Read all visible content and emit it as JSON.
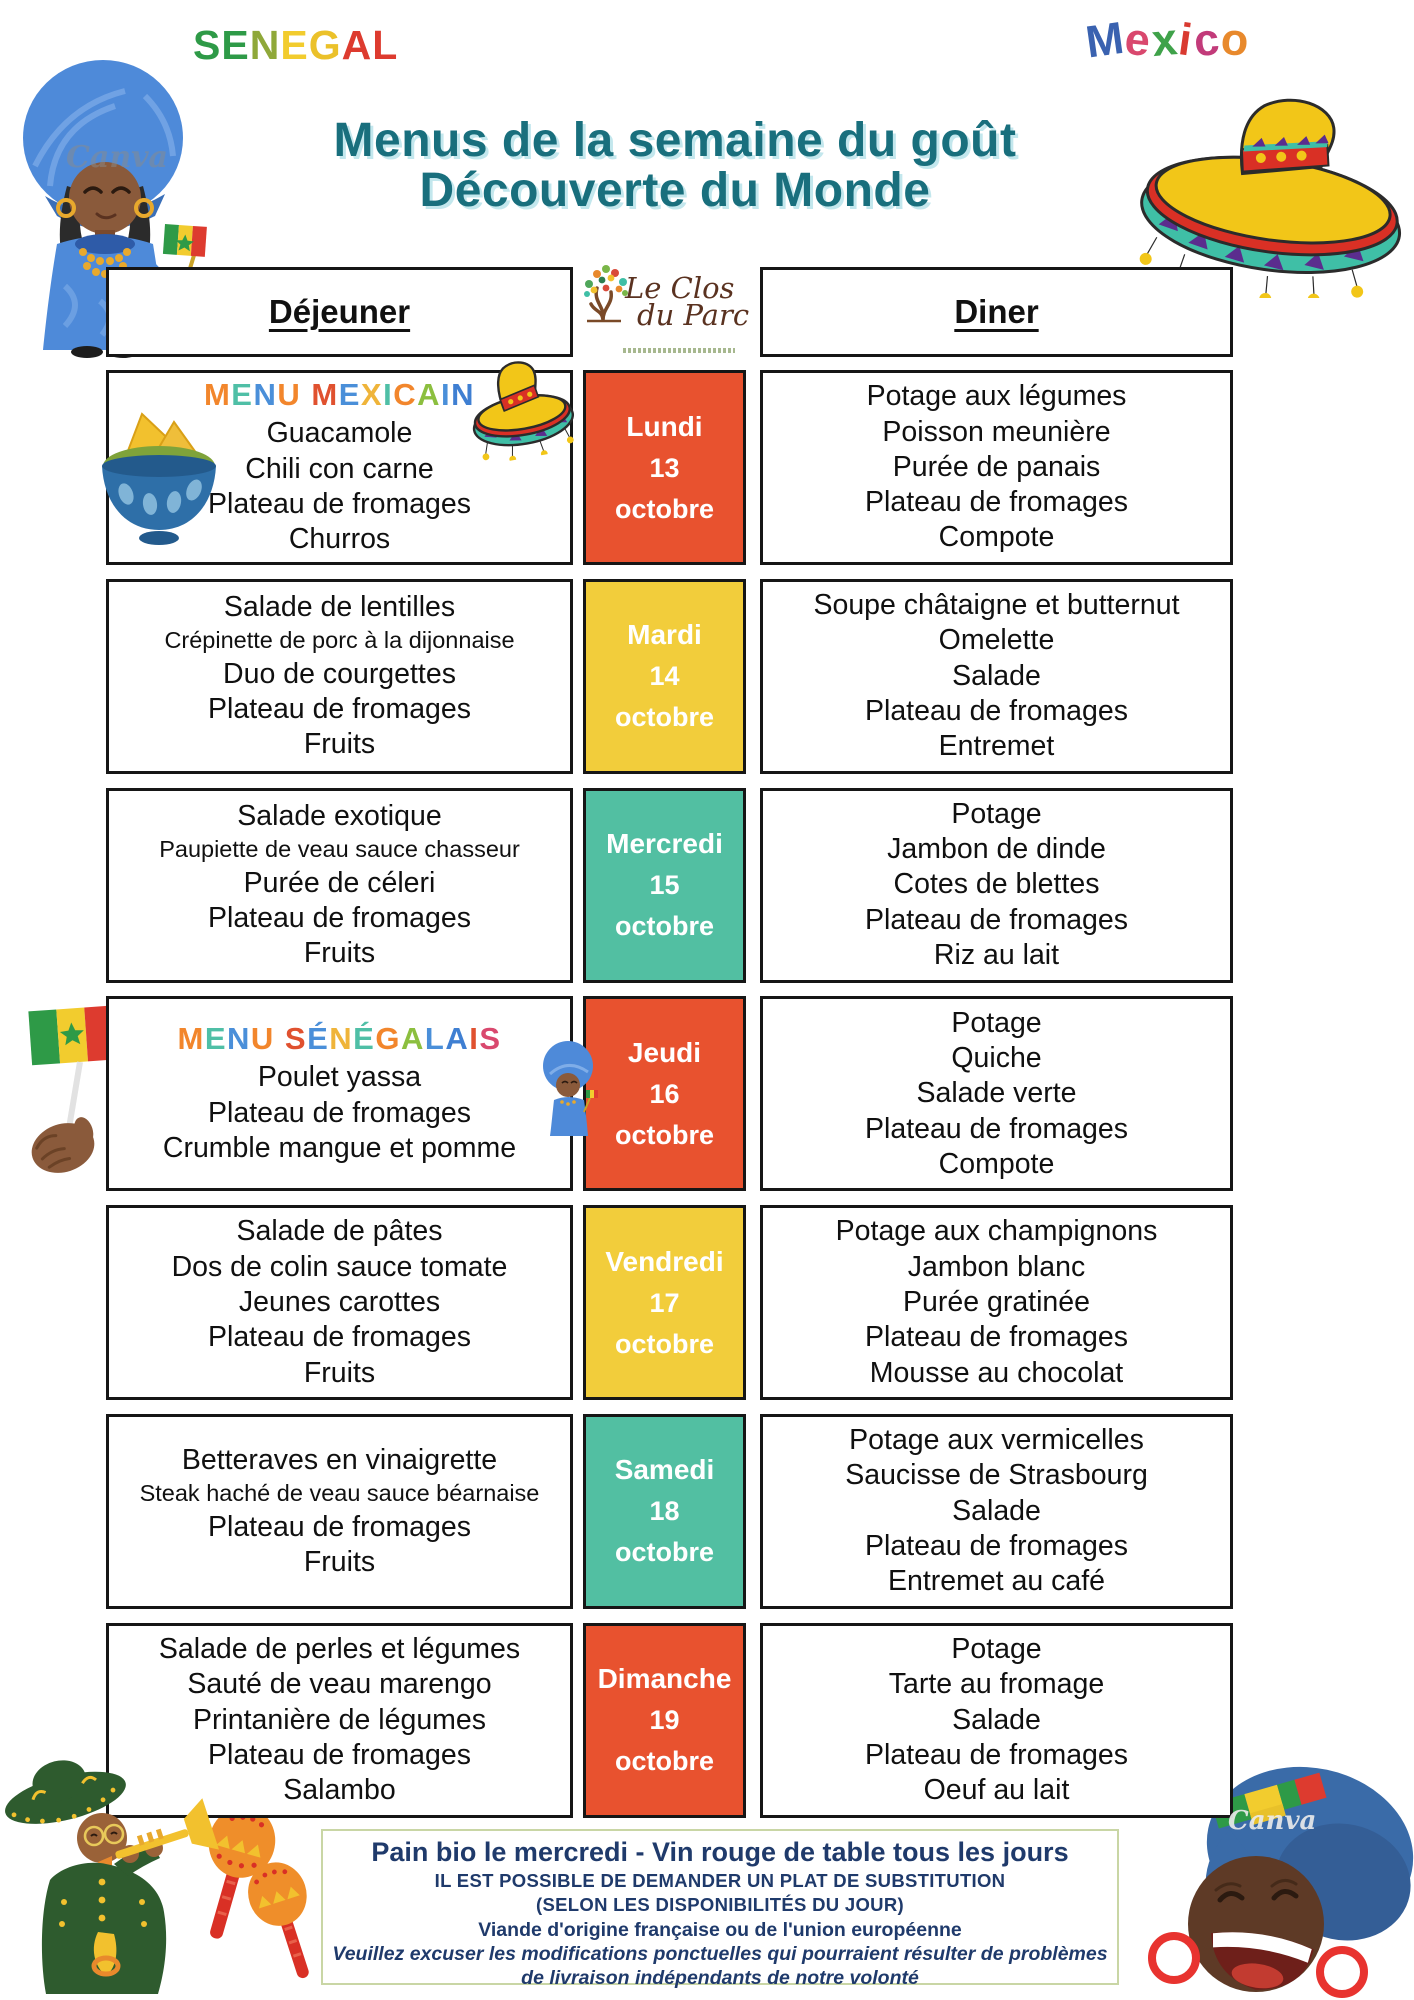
{
  "header_art": {
    "senegal_label": "SENEGAL",
    "mexico_label": "Mexico",
    "watermark": "Canva"
  },
  "title": {
    "line1": "Menus de la semaine du goût",
    "line2": "Découverte du Monde",
    "color": "#196F7D"
  },
  "logo": {
    "line1": "Le Clos",
    "line2": "du Parc"
  },
  "columns": {
    "lunch": "Déjeuner",
    "dinner": "Diner"
  },
  "day_colors": {
    "orange": "#E8522F",
    "yellow": "#F2CD3B",
    "teal": "#52BFA2"
  },
  "rows": [
    {
      "day": {
        "name": "Lundi",
        "date": "13",
        "month": "octobre",
        "color": "#E8522F"
      },
      "lunch": {
        "title": "MENU MEXICAIN",
        "items": [
          "Guacamole",
          "Chili con carne",
          "Plateau de fromages",
          "Churros"
        ]
      },
      "dinner": {
        "items": [
          "Potage aux légumes",
          "Poisson meunière",
          "Purée de panais",
          "Plateau de fromages",
          "Compote"
        ]
      }
    },
    {
      "day": {
        "name": "Mardi",
        "date": "14",
        "month": "octobre",
        "color": "#F2CD3B"
      },
      "lunch": {
        "items": [
          "Salade de lentilles",
          "Crépinette de porc à la dijonnaise",
          "Duo de courgettes",
          "Plateau de fromages",
          "Fruits"
        ]
      },
      "dinner": {
        "items": [
          "Soupe châtaigne et butternut",
          "Omelette",
          "Salade",
          "Plateau de fromages",
          "Entremet"
        ]
      }
    },
    {
      "day": {
        "name": "Mercredi",
        "date": "15",
        "month": "octobre",
        "color": "#52BFA2"
      },
      "lunch": {
        "items": [
          "Salade exotique",
          "Paupiette de veau sauce chasseur",
          "Purée de céleri",
          "Plateau de fromages",
          "Fruits"
        ]
      },
      "dinner": {
        "items": [
          "Potage",
          "Jambon de dinde",
          "Cotes de blettes",
          "Plateau de fromages",
          "Riz au lait"
        ]
      }
    },
    {
      "day": {
        "name": "Jeudi",
        "date": "16",
        "month": "octobre",
        "color": "#E8522F"
      },
      "lunch": {
        "title": "MENU SÉNÉGALAIS",
        "items": [
          "Poulet yassa",
          "Plateau de fromages",
          "Crumble mangue et pomme"
        ]
      },
      "dinner": {
        "items": [
          "Potage",
          "Quiche",
          "Salade verte",
          "Plateau de fromages",
          "Compote"
        ]
      }
    },
    {
      "day": {
        "name": "Vendredi",
        "date": "17",
        "month": "octobre",
        "color": "#F2CD3B"
      },
      "lunch": {
        "items": [
          "Salade de pâtes",
          "Dos de colin sauce tomate",
          "Jeunes carottes",
          "Plateau de fromages",
          "Fruits"
        ]
      },
      "dinner": {
        "items": [
          "Potage aux champignons",
          "Jambon blanc",
          "Purée gratinée",
          "Plateau de fromages",
          "Mousse au chocolat"
        ]
      }
    },
    {
      "day": {
        "name": "Samedi",
        "date": "18",
        "month": "octobre",
        "color": "#52BFA2"
      },
      "lunch": {
        "items": [
          "Betteraves en vinaigrette",
          "Steak haché de veau sauce béarnaise",
          "Plateau de fromages",
          "Fruits"
        ]
      },
      "dinner": {
        "items": [
          "Potage aux vermicelles",
          "Saucisse de Strasbourg",
          "Salade",
          "Plateau de fromages",
          "Entremet au café"
        ]
      }
    },
    {
      "day": {
        "name": "Dimanche",
        "date": "19",
        "month": "octobre",
        "color": "#E8522F"
      },
      "lunch": {
        "items": [
          "Salade de perles et légumes",
          "Sauté de veau marengo",
          "Printanière de légumes",
          "Plateau de fromages",
          "Salambo"
        ]
      },
      "dinner": {
        "items": [
          "Potage",
          "Tarte au fromage",
          "Salade",
          "Plateau de fromages",
          "Oeuf au lait"
        ]
      }
    }
  ],
  "footer": {
    "line1": "Pain bio le mercredi - Vin rouge de table tous les jours",
    "line2": "IL EST POSSIBLE DE DEMANDER UN PLAT DE SUBSTITUTION",
    "line3": "(SELON LES DISPONIBILITÉS DU JOUR)",
    "line4": "Viande d'origine française ou de l'union européenne",
    "line5": "Veuillez excuser les modifications ponctuelles qui pourraient résulter de problèmes",
    "line6": "de livraison indépendants de notre volonté"
  }
}
